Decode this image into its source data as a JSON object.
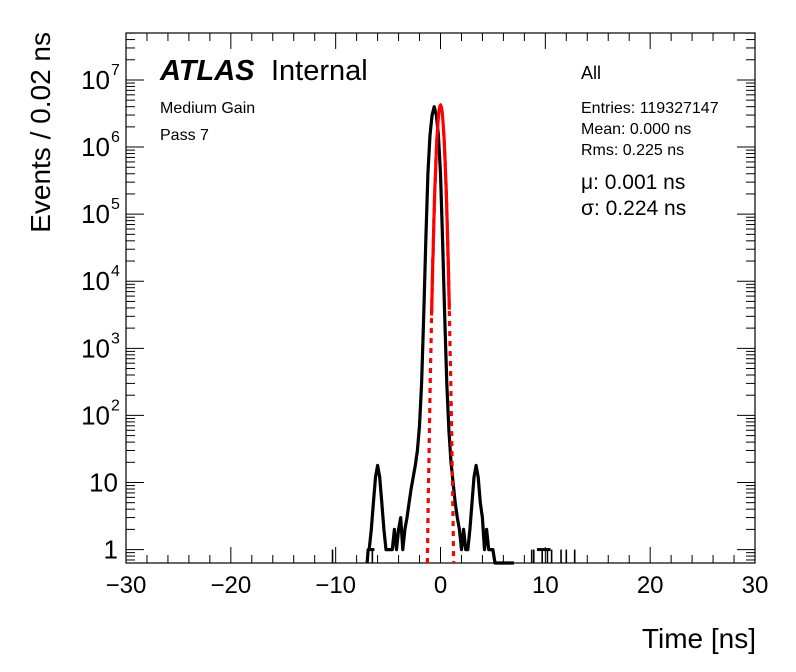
{
  "chart_data": {
    "type": "line",
    "title": "",
    "xlabel": "Time [ns]",
    "ylabel": "Events / 0.02 ns",
    "xlim": [
      -30,
      30
    ],
    "ylog": true,
    "ylim_decades": [
      -0.2,
      7.7
    ],
    "x_ticks": [
      -30,
      -20,
      -10,
      0,
      10,
      20,
      30
    ],
    "x_tick_labels": [
      "−30",
      "−20",
      "−10",
      "0",
      "10",
      "20",
      "30"
    ],
    "y_tick_labels": [
      {
        "value": 1,
        "base": "1",
        "exp": ""
      },
      {
        "value": 10,
        "base": "10",
        "exp": ""
      },
      {
        "value": 100,
        "base": "10",
        "exp": "2"
      },
      {
        "value": 1000,
        "base": "10",
        "exp": "3"
      },
      {
        "value": 10000,
        "base": "10",
        "exp": "4"
      },
      {
        "value": 100000,
        "base": "10",
        "exp": "5"
      },
      {
        "value": 1000000,
        "base": "10",
        "exp": "6"
      },
      {
        "value": 10000000,
        "base": "10",
        "exp": "7"
      }
    ],
    "grid": false,
    "series": [
      {
        "color": "#000000",
        "style": "histogram",
        "x": [
          -7.0,
          -6.9,
          -6.8,
          -6.6,
          -6.4,
          -6.2,
          -6.0,
          -5.8,
          -5.6,
          -5.4,
          -5.2,
          -5.0,
          -4.8,
          -4.6,
          -4.4,
          -4.2,
          -4.0,
          -3.8,
          -3.6,
          -3.4,
          -3.2,
          -3.0,
          -2.8,
          -2.6,
          -2.4,
          -2.2,
          -2.0,
          -1.8,
          -1.6,
          -1.4,
          -1.2,
          -1.0,
          -0.8,
          -0.6,
          -0.4,
          -0.2,
          0.0,
          0.2,
          0.4,
          0.6,
          0.8,
          1.0,
          1.2,
          1.4,
          1.6,
          1.8,
          2.0,
          2.2,
          2.4,
          2.6,
          2.8,
          3.0,
          3.2,
          3.4,
          3.6,
          3.8,
          4.0,
          4.2,
          4.4,
          4.6,
          4.8,
          5.0,
          5.2,
          5.4,
          5.6,
          5.8,
          6.0,
          6.2,
          6.4,
          6.6,
          7.0
        ],
        "y": [
          0.55,
          1,
          1,
          2,
          5,
          12,
          18,
          12,
          5,
          2,
          1,
          1,
          1,
          1,
          2,
          1,
          2,
          3,
          1,
          2,
          3,
          5,
          8,
          12,
          18,
          30,
          70,
          300,
          3000,
          40000,
          400000,
          1500000,
          3000000,
          4000000,
          3000000,
          1500000,
          400000,
          40000,
          3000,
          300,
          60,
          20,
          10,
          5,
          3,
          2,
          1,
          2,
          1,
          1,
          2,
          5,
          12,
          18,
          12,
          5,
          3,
          1,
          2,
          1,
          1,
          1,
          0.55,
          0.55,
          0.55,
          0.55,
          0.55,
          0.55,
          0.55,
          0.55,
          0.55
        ]
      },
      {
        "color": "#ff0000",
        "style": "fit",
        "mu": 0.001,
        "sigma": 0.224,
        "peak": 4200000
      }
    ],
    "scattered_entries": [
      -10.3,
      -6.5,
      8.7,
      8.9,
      9.7,
      10.2,
      10.6,
      11.5,
      12.0,
      12.8
    ]
  },
  "labels": {
    "atlas": "ATLAS",
    "internal": "Internal",
    "gain": "Medium Gain",
    "pass": "Pass 7"
  },
  "stats": {
    "selection": "All",
    "entries": "Entries: 119327147",
    "mean": "Mean: 0.000 ns",
    "rms": "Rms: 0.225 ns",
    "mu": "μ: 0.001 ns",
    "sigma": "σ: 0.224 ns"
  }
}
